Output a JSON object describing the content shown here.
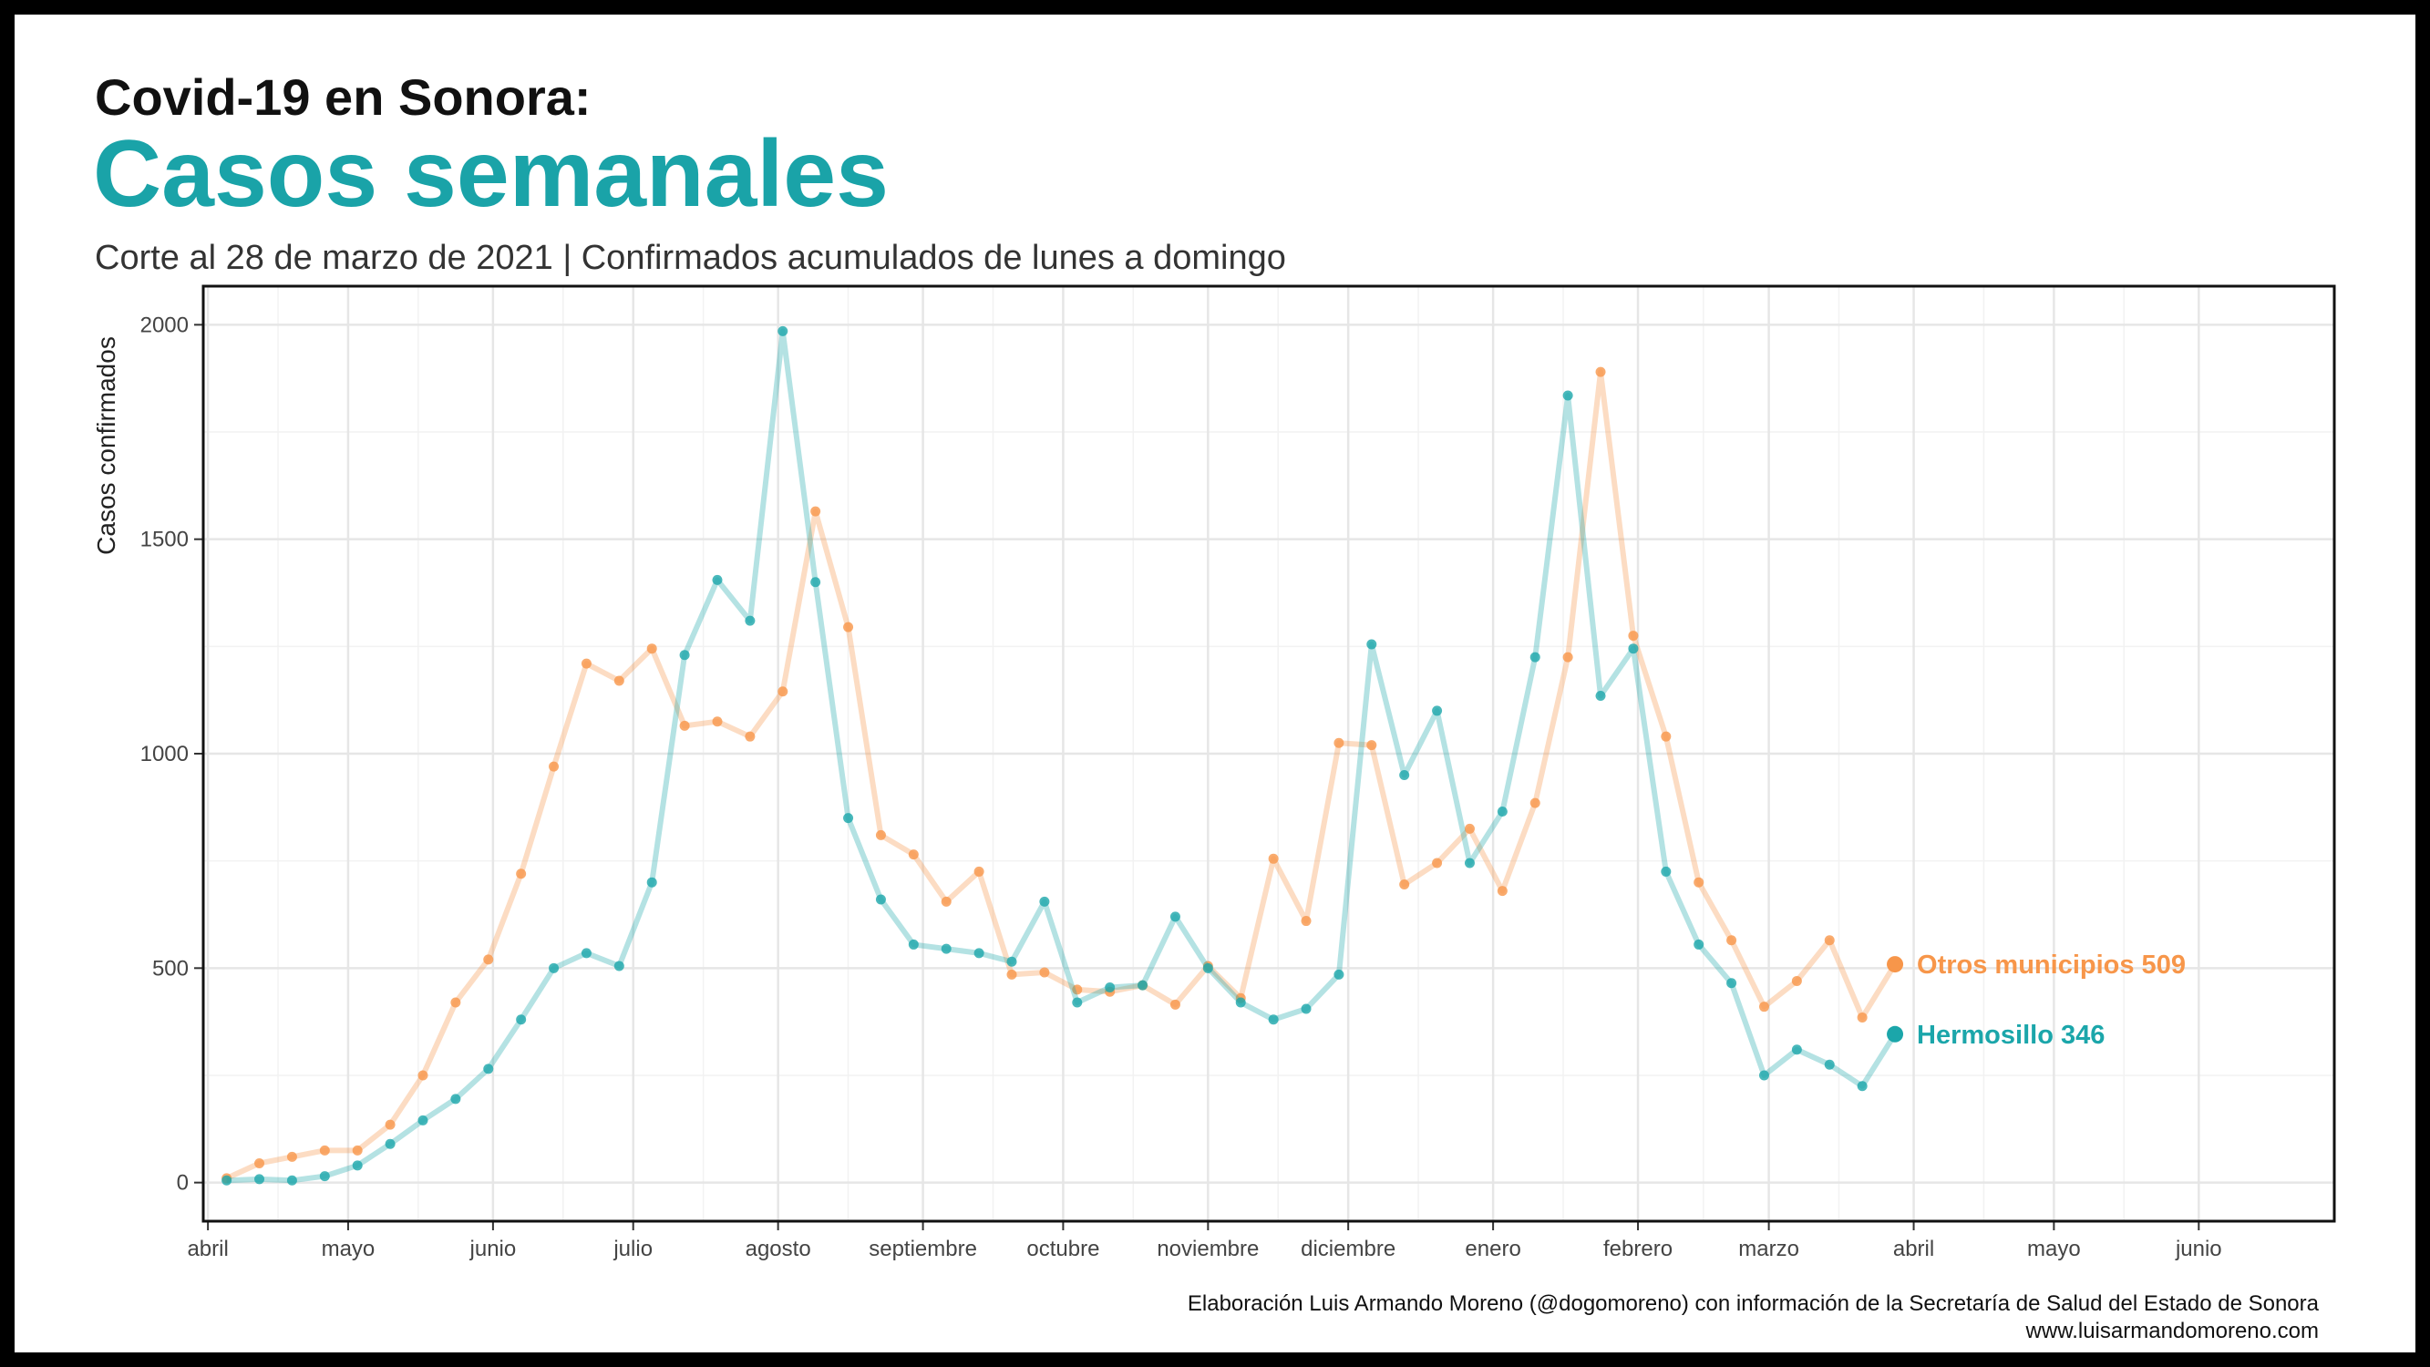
{
  "header": {
    "kicker": "Covid-19 en Sonora:",
    "title": "Casos semanales",
    "subtitle": "Corte al 28 de marzo de 2021 | Confirmados acumulados de lunes a domingo"
  },
  "caption": {
    "line1": "Elaboración Luis Armando Moreno (@dogomoreno) con información de la Secretaría de Salud del Estado de Sonora",
    "line2": "www.luisarmandomoreno.com"
  },
  "colors": {
    "title": "#1aa3a8",
    "hermosillo": "#1ba6aa",
    "otros": "#f7964a",
    "grid": "#e6e6e6",
    "axis_text": "#444444"
  },
  "chart_data": {
    "type": "line",
    "title": "Casos semanales",
    "ylabel": "Casos confirmados",
    "xlabel": "",
    "ylim": [
      -90,
      2090
    ],
    "xlim": [
      "2020-03-31",
      "2021-06-30"
    ],
    "yticks": [
      0,
      500,
      1000,
      1500,
      2000
    ],
    "xticks": [
      {
        "date": "2020-04-01",
        "label": "abril"
      },
      {
        "date": "2020-05-01",
        "label": "mayo"
      },
      {
        "date": "2020-06-01",
        "label": "junio"
      },
      {
        "date": "2020-07-01",
        "label": "julio"
      },
      {
        "date": "2020-08-01",
        "label": "agosto"
      },
      {
        "date": "2020-09-01",
        "label": "septiembre"
      },
      {
        "date": "2020-10-01",
        "label": "octubre"
      },
      {
        "date": "2020-11-01",
        "label": "noviembre"
      },
      {
        "date": "2020-12-01",
        "label": "diciembre"
      },
      {
        "date": "2021-01-01",
        "label": "enero"
      },
      {
        "date": "2021-02-01",
        "label": "febrero"
      },
      {
        "date": "2021-03-01",
        "label": "marzo"
      },
      {
        "date": "2021-04-01",
        "label": "abril"
      },
      {
        "date": "2021-05-01",
        "label": "mayo"
      },
      {
        "date": "2021-06-01",
        "label": "junio"
      }
    ],
    "x": [
      "2020-04-05",
      "2020-04-12",
      "2020-04-19",
      "2020-04-26",
      "2020-05-03",
      "2020-05-10",
      "2020-05-17",
      "2020-05-24",
      "2020-05-31",
      "2020-06-07",
      "2020-06-14",
      "2020-06-21",
      "2020-06-28",
      "2020-07-05",
      "2020-07-12",
      "2020-07-19",
      "2020-07-26",
      "2020-08-02",
      "2020-08-09",
      "2020-08-16",
      "2020-08-23",
      "2020-08-30",
      "2020-09-06",
      "2020-09-13",
      "2020-09-20",
      "2020-09-27",
      "2020-10-04",
      "2020-10-11",
      "2020-10-18",
      "2020-10-25",
      "2020-11-01",
      "2020-11-08",
      "2020-11-15",
      "2020-11-22",
      "2020-11-29",
      "2020-12-06",
      "2020-12-13",
      "2020-12-20",
      "2020-12-27",
      "2021-01-03",
      "2021-01-10",
      "2021-01-17",
      "2021-01-24",
      "2021-01-31",
      "2021-02-07",
      "2021-02-14",
      "2021-02-21",
      "2021-02-28",
      "2021-03-07",
      "2021-03-14",
      "2021-03-21",
      "2021-03-28"
    ],
    "series": [
      {
        "name": "Otros municipios",
        "end_label": "Otros municipios 509",
        "values": [
          10,
          45,
          60,
          75,
          75,
          135,
          250,
          420,
          520,
          720,
          970,
          1210,
          1170,
          1245,
          1065,
          1075,
          1040,
          1145,
          1565,
          1295,
          810,
          765,
          655,
          725,
          485,
          490,
          450,
          445,
          460,
          415,
          505,
          430,
          755,
          610,
          1025,
          1020,
          695,
          745,
          825,
          680,
          885,
          1225,
          1890,
          1275,
          1040,
          700,
          565,
          410,
          470,
          565,
          385,
          509
        ]
      },
      {
        "name": "Hermosillo",
        "end_label": "Hermosillo 346",
        "values": [
          5,
          8,
          5,
          15,
          40,
          90,
          145,
          195,
          265,
          380,
          500,
          535,
          505,
          700,
          1230,
          1405,
          1310,
          1985,
          1400,
          850,
          660,
          555,
          545,
          535,
          515,
          655,
          420,
          455,
          460,
          620,
          500,
          420,
          380,
          405,
          485,
          1255,
          950,
          1100,
          745,
          865,
          1225,
          1835,
          1135,
          1245,
          725,
          555,
          465,
          250,
          310,
          275,
          225,
          346
        ]
      }
    ]
  }
}
